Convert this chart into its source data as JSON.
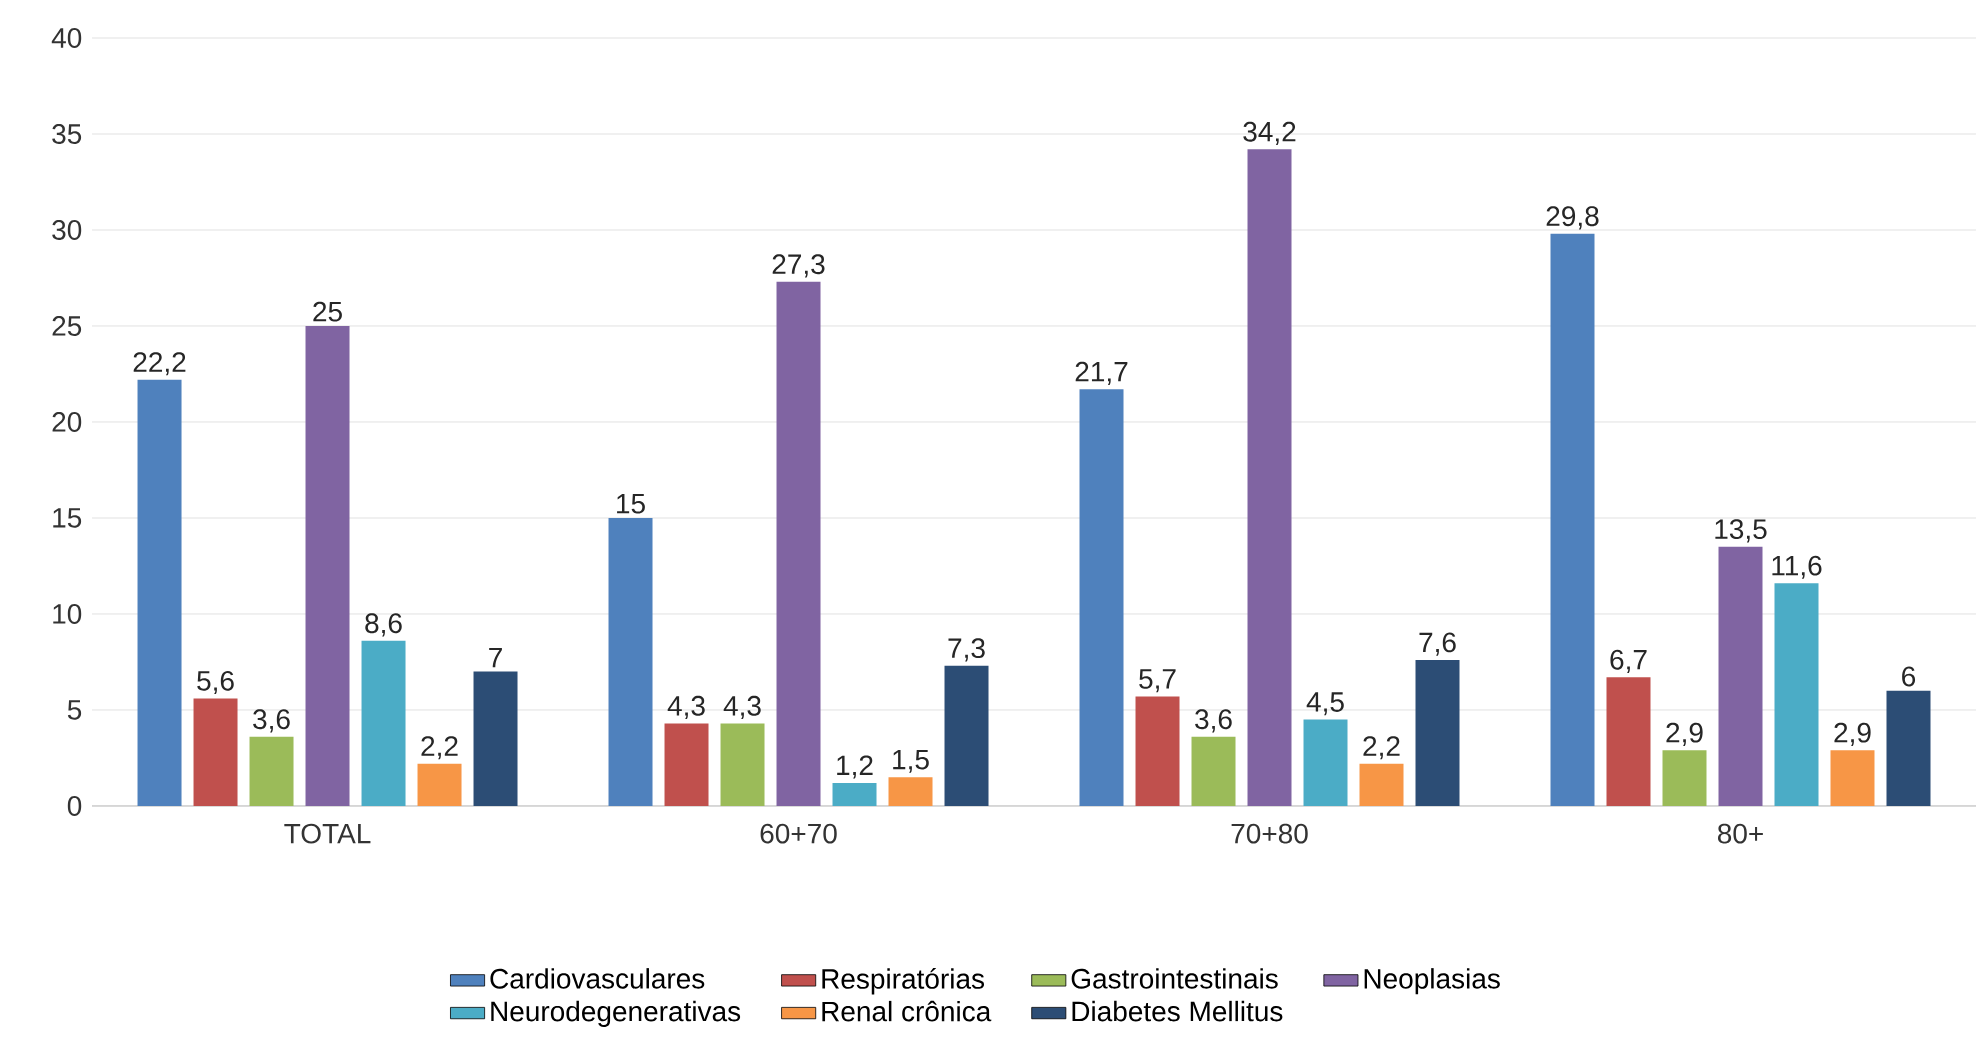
{
  "chart_data": {
    "type": "bar",
    "categories": [
      "TOTAL",
      "60+70",
      "70+80",
      "80+"
    ],
    "series": [
      {
        "name": "Cardiovasculares",
        "color": "#4f81bd",
        "values": [
          22.2,
          15,
          21.7,
          29.8
        ],
        "value_labels": [
          "22,2",
          "15",
          "21,7",
          "29,8"
        ]
      },
      {
        "name": "Respiratórias",
        "color": "#c0504d",
        "values": [
          5.6,
          4.3,
          5.7,
          6.7
        ],
        "value_labels": [
          "5,6",
          "4,3",
          "5,7",
          "6,7"
        ]
      },
      {
        "name": "Gastrointestinais",
        "color": "#9bbb59",
        "values": [
          3.6,
          4.3,
          3.6,
          2.9
        ],
        "value_labels": [
          "3,6",
          "4,3",
          "3,6",
          "2,9"
        ]
      },
      {
        "name": "Neoplasias",
        "color": "#8064a2",
        "values": [
          25,
          27.3,
          34.2,
          13.5
        ],
        "value_labels": [
          "25",
          "27,3",
          "34,2",
          "13,5"
        ]
      },
      {
        "name": "Neurodegenerativas",
        "color": "#4bacc6",
        "values": [
          8.6,
          1.2,
          4.5,
          11.6
        ],
        "value_labels": [
          "8,6",
          "1,2",
          "4,5",
          "11,6"
        ]
      },
      {
        "name": "Renal crônica",
        "color": "#f79646",
        "values": [
          2.2,
          1.5,
          2.2,
          2.9
        ],
        "value_labels": [
          "2,2",
          "1,5",
          "2,2",
          "2,9"
        ]
      },
      {
        "name": "Diabetes Mellitus",
        "color": "#2c4d75",
        "values": [
          7,
          7.3,
          7.6,
          6
        ],
        "value_labels": [
          "7",
          "7,3",
          "7,6",
          "6"
        ]
      }
    ],
    "ylim": [
      0,
      40
    ],
    "yticks": [
      0,
      5,
      10,
      15,
      20,
      25,
      30,
      35,
      40
    ],
    "grid": "y",
    "legend": "bottom"
  }
}
